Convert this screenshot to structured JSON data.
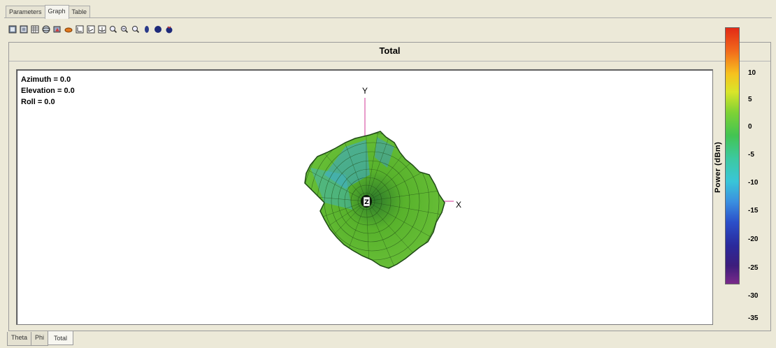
{
  "tabs": [
    "Parameters",
    "Graph",
    "Table"
  ],
  "active_tab": "Graph",
  "toolbar": {
    "icons": [
      "view-3d-icon",
      "view-3d-wire-icon",
      "grid-icon",
      "sphere-icon",
      "pattern-icon",
      "surface-icon",
      "axes-xy-icon",
      "axes-xz-icon",
      "axes-yz-icon",
      "zoom-in-icon",
      "rotate-icon",
      "zoom-out-icon",
      "antenna-icon",
      "ball-icon",
      "cut-ball-icon"
    ]
  },
  "panel": {
    "title": "Total"
  },
  "readouts": {
    "azimuth": "Azimuth = 0.0",
    "elevation": "Elevation = 0.0",
    "roll": "Roll = 0.0"
  },
  "axes": {
    "x": "X",
    "y": "Y",
    "z": "Z"
  },
  "colorbar": {
    "title": "Power  (dBm)",
    "ticks": [
      "10",
      "5",
      "0",
      "-5",
      "-10",
      "-15",
      "-20",
      "-25",
      "-30",
      "-35"
    ]
  },
  "bottom_tabs": [
    "Theta",
    "Phi",
    "Total"
  ],
  "active_bottom_tab": "Total",
  "colors": {
    "mesh_green": "#5cb82e",
    "mesh_blue": "#3aa6d8",
    "axis_pink": "#e07ab8"
  }
}
